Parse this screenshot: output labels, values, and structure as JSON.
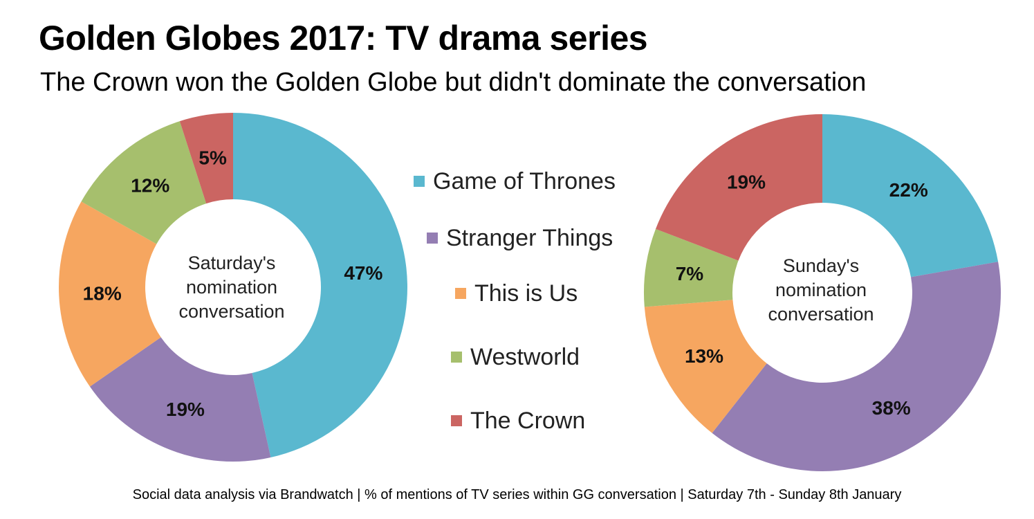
{
  "header": {
    "title": "Golden Globes 2017: TV drama series",
    "subtitle": "The Crown won the Golden Globe but didn't dominate the conversation"
  },
  "footer": {
    "source": "Social data analysis via Brandwatch | % of mentions of TV series within GG conversation | Saturday 7th - Sunday 8th January"
  },
  "legend": {
    "items": [
      {
        "label": "Game of Thrones",
        "color": "#5ab8cf"
      },
      {
        "label": "Stranger Things",
        "color": "#947eb3"
      },
      {
        "label": "This is Us",
        "color": "#f6a660"
      },
      {
        "label": "Westworld",
        "color": "#a6bf6d"
      },
      {
        "label": "The Crown",
        "color": "#cb6562"
      }
    ]
  },
  "chart_data": [
    {
      "type": "pie",
      "donut": true,
      "center_label": [
        "Saturday's",
        "nomination",
        "conversation"
      ],
      "categories": [
        "Game of Thrones",
        "Stranger Things",
        "This is Us",
        "Westworld",
        "The Crown"
      ],
      "values": [
        47,
        19,
        18,
        12,
        5
      ],
      "labels": [
        "47%",
        "19%",
        "18%",
        "12%",
        "5%"
      ],
      "colors": [
        "#5ab8cf",
        "#947eb3",
        "#f6a660",
        "#a6bf6d",
        "#cb6562"
      ]
    },
    {
      "type": "pie",
      "donut": true,
      "center_label": [
        "Sunday's",
        "nomination",
        "conversation"
      ],
      "categories": [
        "Game of Thrones",
        "Stranger Things",
        "This is Us",
        "Westworld",
        "The Crown"
      ],
      "values": [
        22,
        38,
        13,
        7,
        19
      ],
      "labels": [
        "22%",
        "38%",
        "13%",
        "7%",
        "19%"
      ],
      "colors": [
        "#5ab8cf",
        "#947eb3",
        "#f6a660",
        "#a6bf6d",
        "#cb6562"
      ]
    }
  ]
}
